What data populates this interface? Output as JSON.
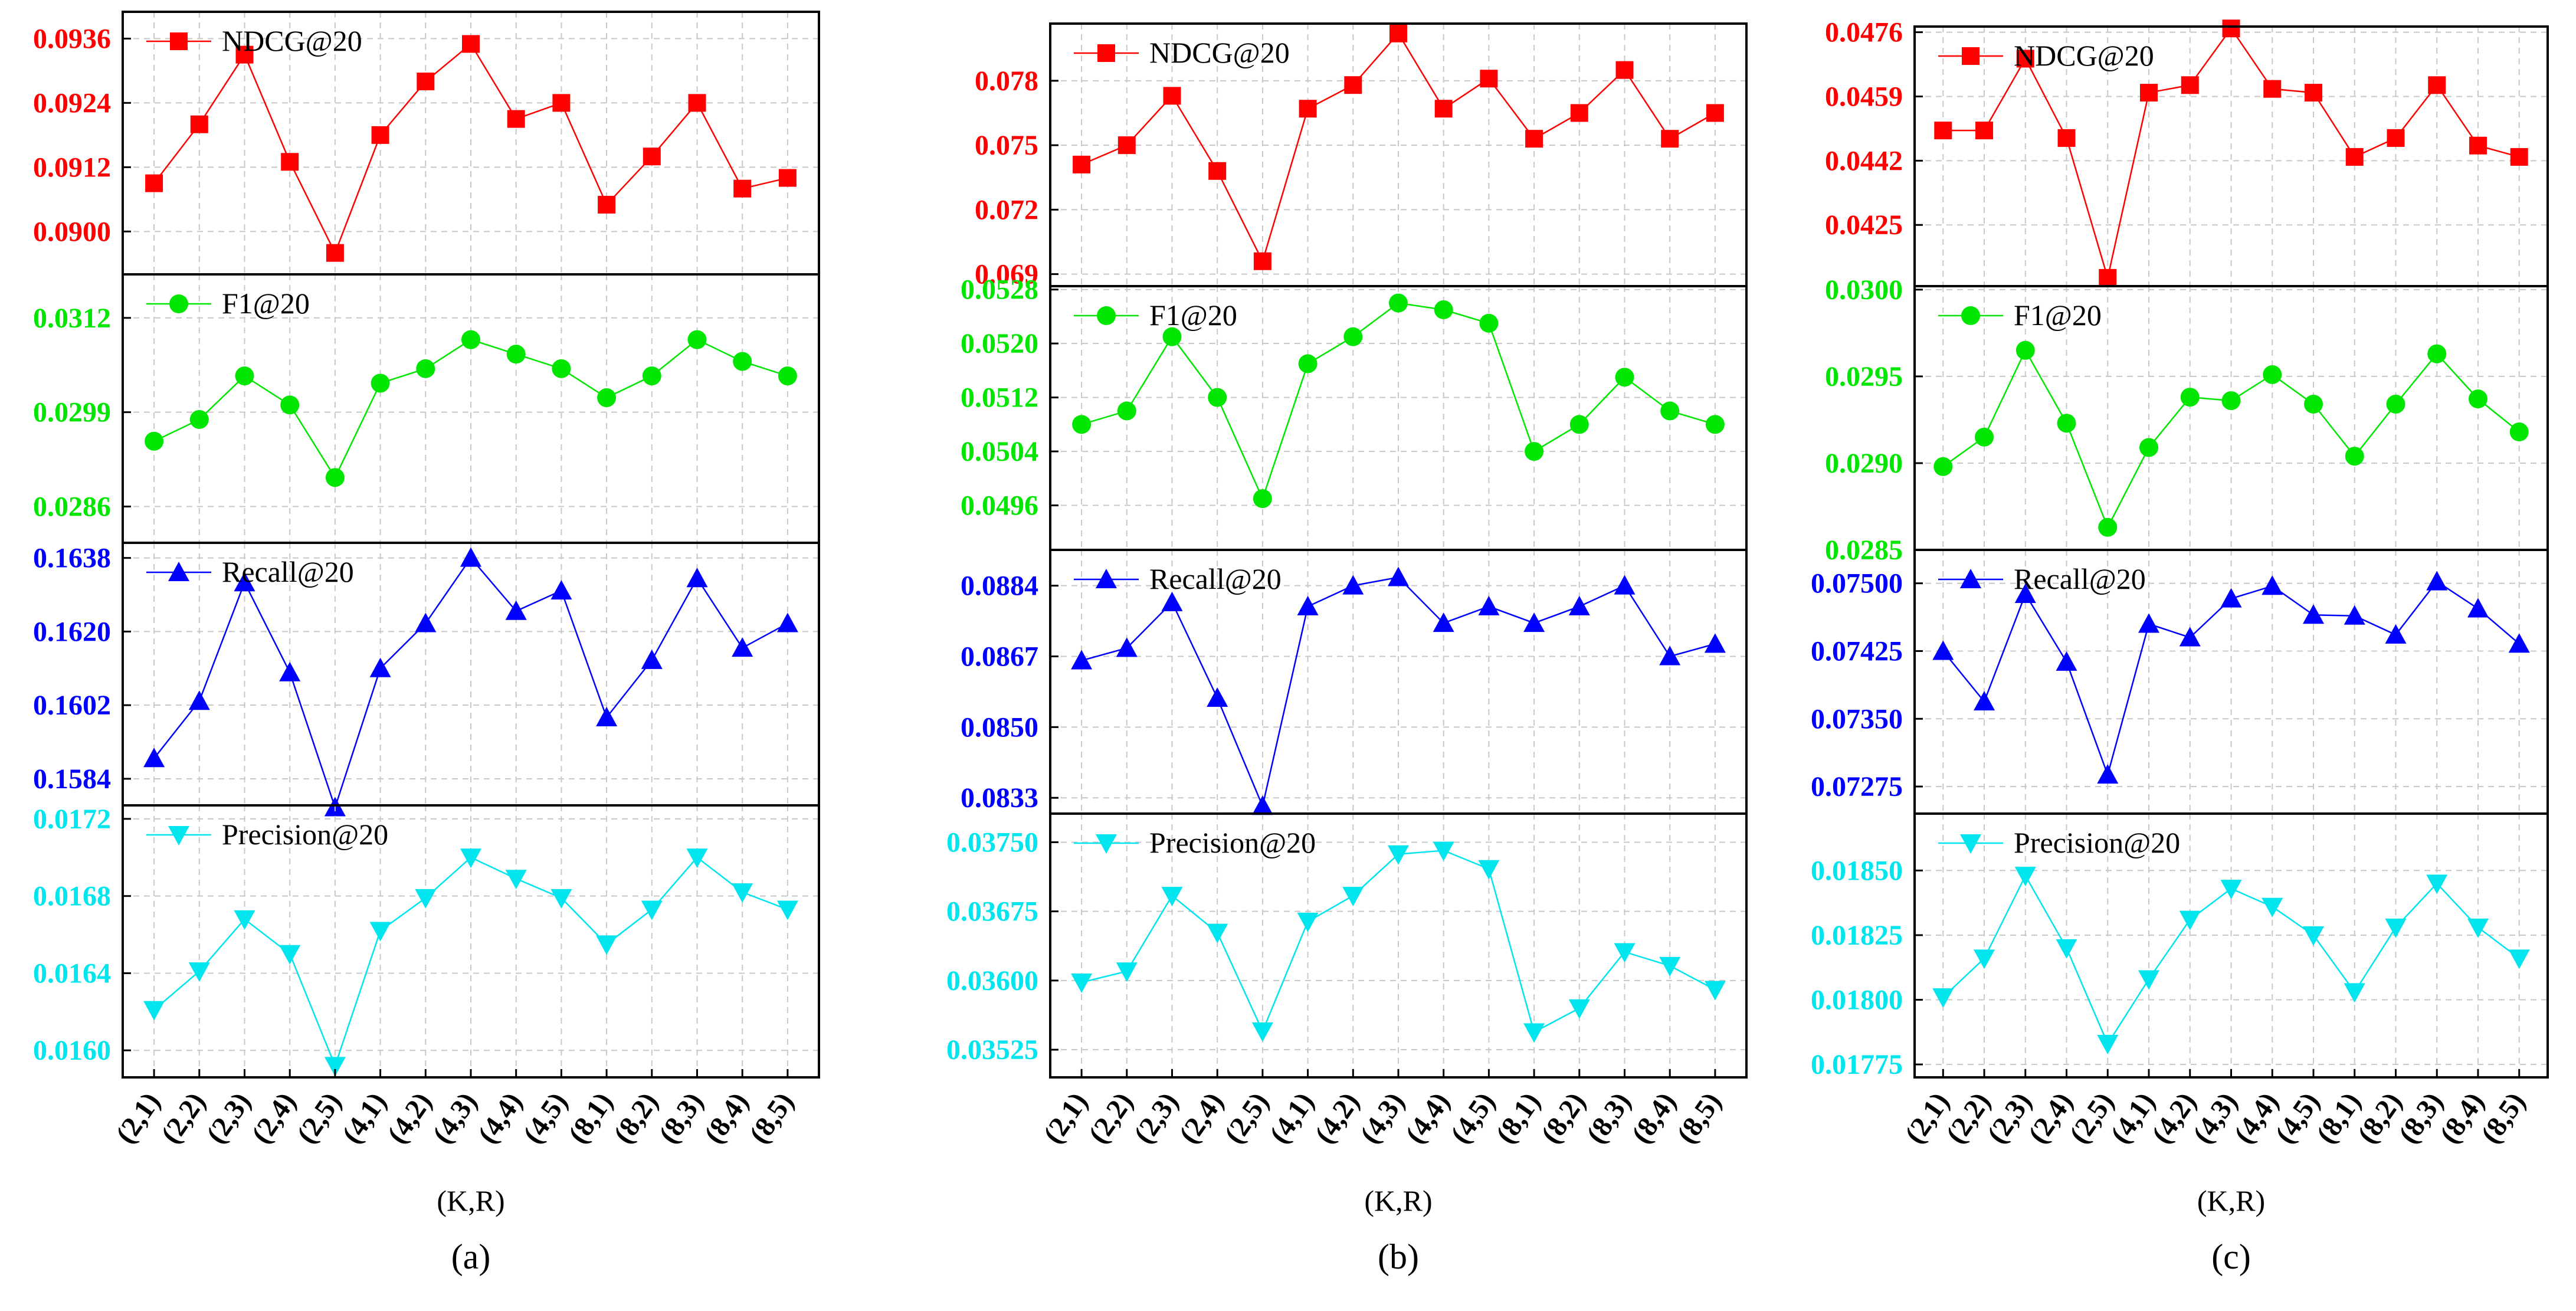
{
  "x_axis_title": "(K,R)",
  "categories": [
    "(2,1)",
    "(2,2)",
    "(2,3)",
    "(2,4)",
    "(2,5)",
    "(4,1)",
    "(4,2)",
    "(4,3)",
    "(4,4)",
    "(4,5)",
    "(8,1)",
    "(8,2)",
    "(8,3)",
    "(8,4)",
    "(8,5)"
  ],
  "colors": {
    "ndcg": "#ff0000",
    "f1": "#00e600",
    "recall": "#0000ff",
    "precision": "#00e5ee"
  },
  "chart_data": [
    {
      "type": "line",
      "panel_label": "(a)",
      "xlabel": "(K,R)",
      "categories": [
        "(2,1)",
        "(2,2)",
        "(2,3)",
        "(2,4)",
        "(2,5)",
        "(4,1)",
        "(4,2)",
        "(4,3)",
        "(4,4)",
        "(4,5)",
        "(8,1)",
        "(8,2)",
        "(8,3)",
        "(8,4)",
        "(8,5)"
      ],
      "subplots": [
        {
          "name": "NDCG@20",
          "marker": "square",
          "color": "#ff0000",
          "ylim": [
            0.0892,
            0.0941
          ],
          "ticks": [
            "0.0900",
            "0.0912",
            "0.0924",
            "0.0936"
          ],
          "values": [
            0.0909,
            0.092,
            0.0933,
            0.0913,
            0.0896,
            0.0918,
            0.0928,
            0.0935,
            0.0921,
            0.0924,
            0.0905,
            0.0914,
            0.0924,
            0.0908,
            0.091
          ]
        },
        {
          "name": "F1@20",
          "marker": "circle",
          "color": "#00e600",
          "ylim": [
            0.0281,
            0.0318
          ],
          "ticks": [
            "0.0286",
            "0.0299",
            "0.0312"
          ],
          "values": [
            0.0295,
            0.0298,
            0.0304,
            0.03,
            0.029,
            0.0303,
            0.0305,
            0.0309,
            0.0307,
            0.0305,
            0.0301,
            0.0304,
            0.0309,
            0.0306,
            0.0304
          ]
        },
        {
          "name": "Recall@20",
          "marker": "triangle-up",
          "color": "#0000ff",
          "ylim": [
            0.15775,
            0.16417
          ],
          "ticks": [
            "0.1584",
            "0.1602",
            "0.1620",
            "0.1638"
          ],
          "values": [
            0.1589,
            0.1603,
            0.1632,
            0.161,
            0.1577,
            0.1611,
            0.1622,
            0.1638,
            0.1625,
            0.163,
            0.1599,
            0.1613,
            0.1633,
            0.1616,
            0.1622
          ]
        },
        {
          "name": "Precision@20",
          "marker": "triangle-down",
          "color": "#00e5ee",
          "ylim": [
            0.01586,
            0.01727
          ],
          "ticks": [
            "0.0160",
            "0.0164",
            "0.0168",
            "0.0172"
          ],
          "values": [
            0.01621,
            0.01641,
            0.01668,
            0.0165,
            0.01592,
            0.01662,
            0.01679,
            0.017,
            0.01689,
            0.01679,
            0.01655,
            0.01673,
            0.017,
            0.01682,
            0.01673
          ]
        }
      ]
    },
    {
      "type": "line",
      "panel_label": "(b)",
      "xlabel": "(K,R)",
      "categories": [
        "(2,1)",
        "(2,2)",
        "(2,3)",
        "(2,4)",
        "(2,5)",
        "(4,1)",
        "(4,2)",
        "(4,3)",
        "(4,4)",
        "(4,5)",
        "(8,1)",
        "(8,2)",
        "(8,3)",
        "(8,4)",
        "(8,5)"
      ],
      "subplots": [
        {
          "name": "NDCG@20",
          "marker": "square",
          "color": "#ff0000",
          "ylim": [
            0.06844,
            0.08066
          ],
          "ticks": [
            "0.069",
            "0.072",
            "0.075",
            "0.078"
          ],
          "values": [
            0.0741,
            0.075,
            0.0773,
            0.0738,
            0.0696,
            0.0767,
            0.0778,
            0.0802,
            0.0767,
            0.0781,
            0.0753,
            0.0765,
            0.0785,
            0.0753,
            0.0765
          ]
        },
        {
          "name": "F1@20",
          "marker": "circle",
          "color": "#00e600",
          "ylim": [
            0.04894,
            0.05285
          ],
          "ticks": [
            "0.0496",
            "0.0504",
            "0.0512",
            "0.0520",
            "0.0528"
          ],
          "values": [
            0.0508,
            0.051,
            0.0521,
            0.0512,
            0.0497,
            0.0517,
            0.0521,
            0.0526,
            0.0525,
            0.0523,
            0.0504,
            0.0508,
            0.0515,
            0.051,
            0.0508
          ]
        },
        {
          "name": "Recall@20",
          "marker": "triangle-up",
          "color": "#0000ff",
          "ylim": [
            0.08292,
            0.08926
          ],
          "ticks": [
            "0.0833",
            "0.0850",
            "0.0867",
            "0.0884"
          ],
          "values": [
            0.0866,
            0.0869,
            0.088,
            0.0857,
            0.0831,
            0.0879,
            0.0884,
            0.0886,
            0.0875,
            0.0879,
            0.0875,
            0.0879,
            0.0884,
            0.0867,
            0.087
          ]
        },
        {
          "name": "Precision@20",
          "marker": "triangle-down",
          "color": "#00e5ee",
          "ylim": [
            0.03495,
            0.03781
          ],
          "ticks": [
            "0.03525",
            "0.03600",
            "0.03675",
            "0.03750"
          ],
          "values": [
            0.03598,
            0.0361,
            0.03692,
            0.03652,
            0.03545,
            0.03664,
            0.03692,
            0.03737,
            0.03741,
            0.03721,
            0.03544,
            0.0357,
            0.03631,
            0.03616,
            0.0359
          ]
        }
      ]
    },
    {
      "type": "line",
      "panel_label": "(c)",
      "xlabel": "(K,R)",
      "categories": [
        "(2,1)",
        "(2,2)",
        "(2,3)",
        "(2,4)",
        "(2,5)",
        "(4,1)",
        "(4,2)",
        "(4,3)",
        "(4,4)",
        "(4,5)",
        "(8,1)",
        "(8,2)",
        "(8,3)",
        "(8,4)",
        "(8,5)"
      ],
      "subplots": [
        {
          "name": "NDCG@20",
          "marker": "square",
          "color": "#ff0000",
          "ylim": [
            0.04088,
            0.04775
          ],
          "ticks": [
            "0.0425",
            "0.0442",
            "0.0459",
            "0.0476"
          ],
          "values": [
            0.045,
            0.045,
            0.0469,
            0.0448,
            0.0411,
            0.046,
            0.0462,
            0.0477,
            0.0461,
            0.046,
            0.0443,
            0.0448,
            0.0462,
            0.0446,
            0.0443
          ]
        },
        {
          "name": "F1@20",
          "marker": "circle",
          "color": "#00e600",
          "ylim": [
            0.0285,
            0.03002
          ],
          "ticks": [
            "0.0285",
            "0.0290",
            "0.0295",
            "0.0300"
          ],
          "values": [
            0.02898,
            0.02915,
            0.02965,
            0.02923,
            0.02863,
            0.02909,
            0.02938,
            0.02936,
            0.02951,
            0.02934,
            0.02904,
            0.02934,
            0.02963,
            0.02937,
            0.02918
          ]
        },
        {
          "name": "Recall@20",
          "marker": "triangle-up",
          "color": "#0000ff",
          "ylim": [
            0.07245,
            0.07537
          ],
          "ticks": [
            "0.07275",
            "0.07350",
            "0.07425",
            "0.07500"
          ],
          "values": [
            0.07425,
            0.07369,
            0.07488,
            0.07413,
            0.07288,
            0.07455,
            0.0744,
            0.07483,
            0.07497,
            0.07465,
            0.07464,
            0.07443,
            0.07502,
            0.07472,
            0.07433
          ]
        },
        {
          "name": "Precision@20",
          "marker": "triangle-down",
          "color": "#00e5ee",
          "ylim": [
            0.0177,
            0.01872
          ],
          "ticks": [
            "0.01775",
            "0.01800",
            "0.01825",
            "0.01850"
          ],
          "values": [
            0.01801,
            0.01816,
            0.01848,
            0.0182,
            0.01783,
            0.01808,
            0.01831,
            0.01843,
            0.01836,
            0.01825,
            0.01803,
            0.01828,
            0.01845,
            0.01828,
            0.01816
          ]
        }
      ]
    }
  ]
}
